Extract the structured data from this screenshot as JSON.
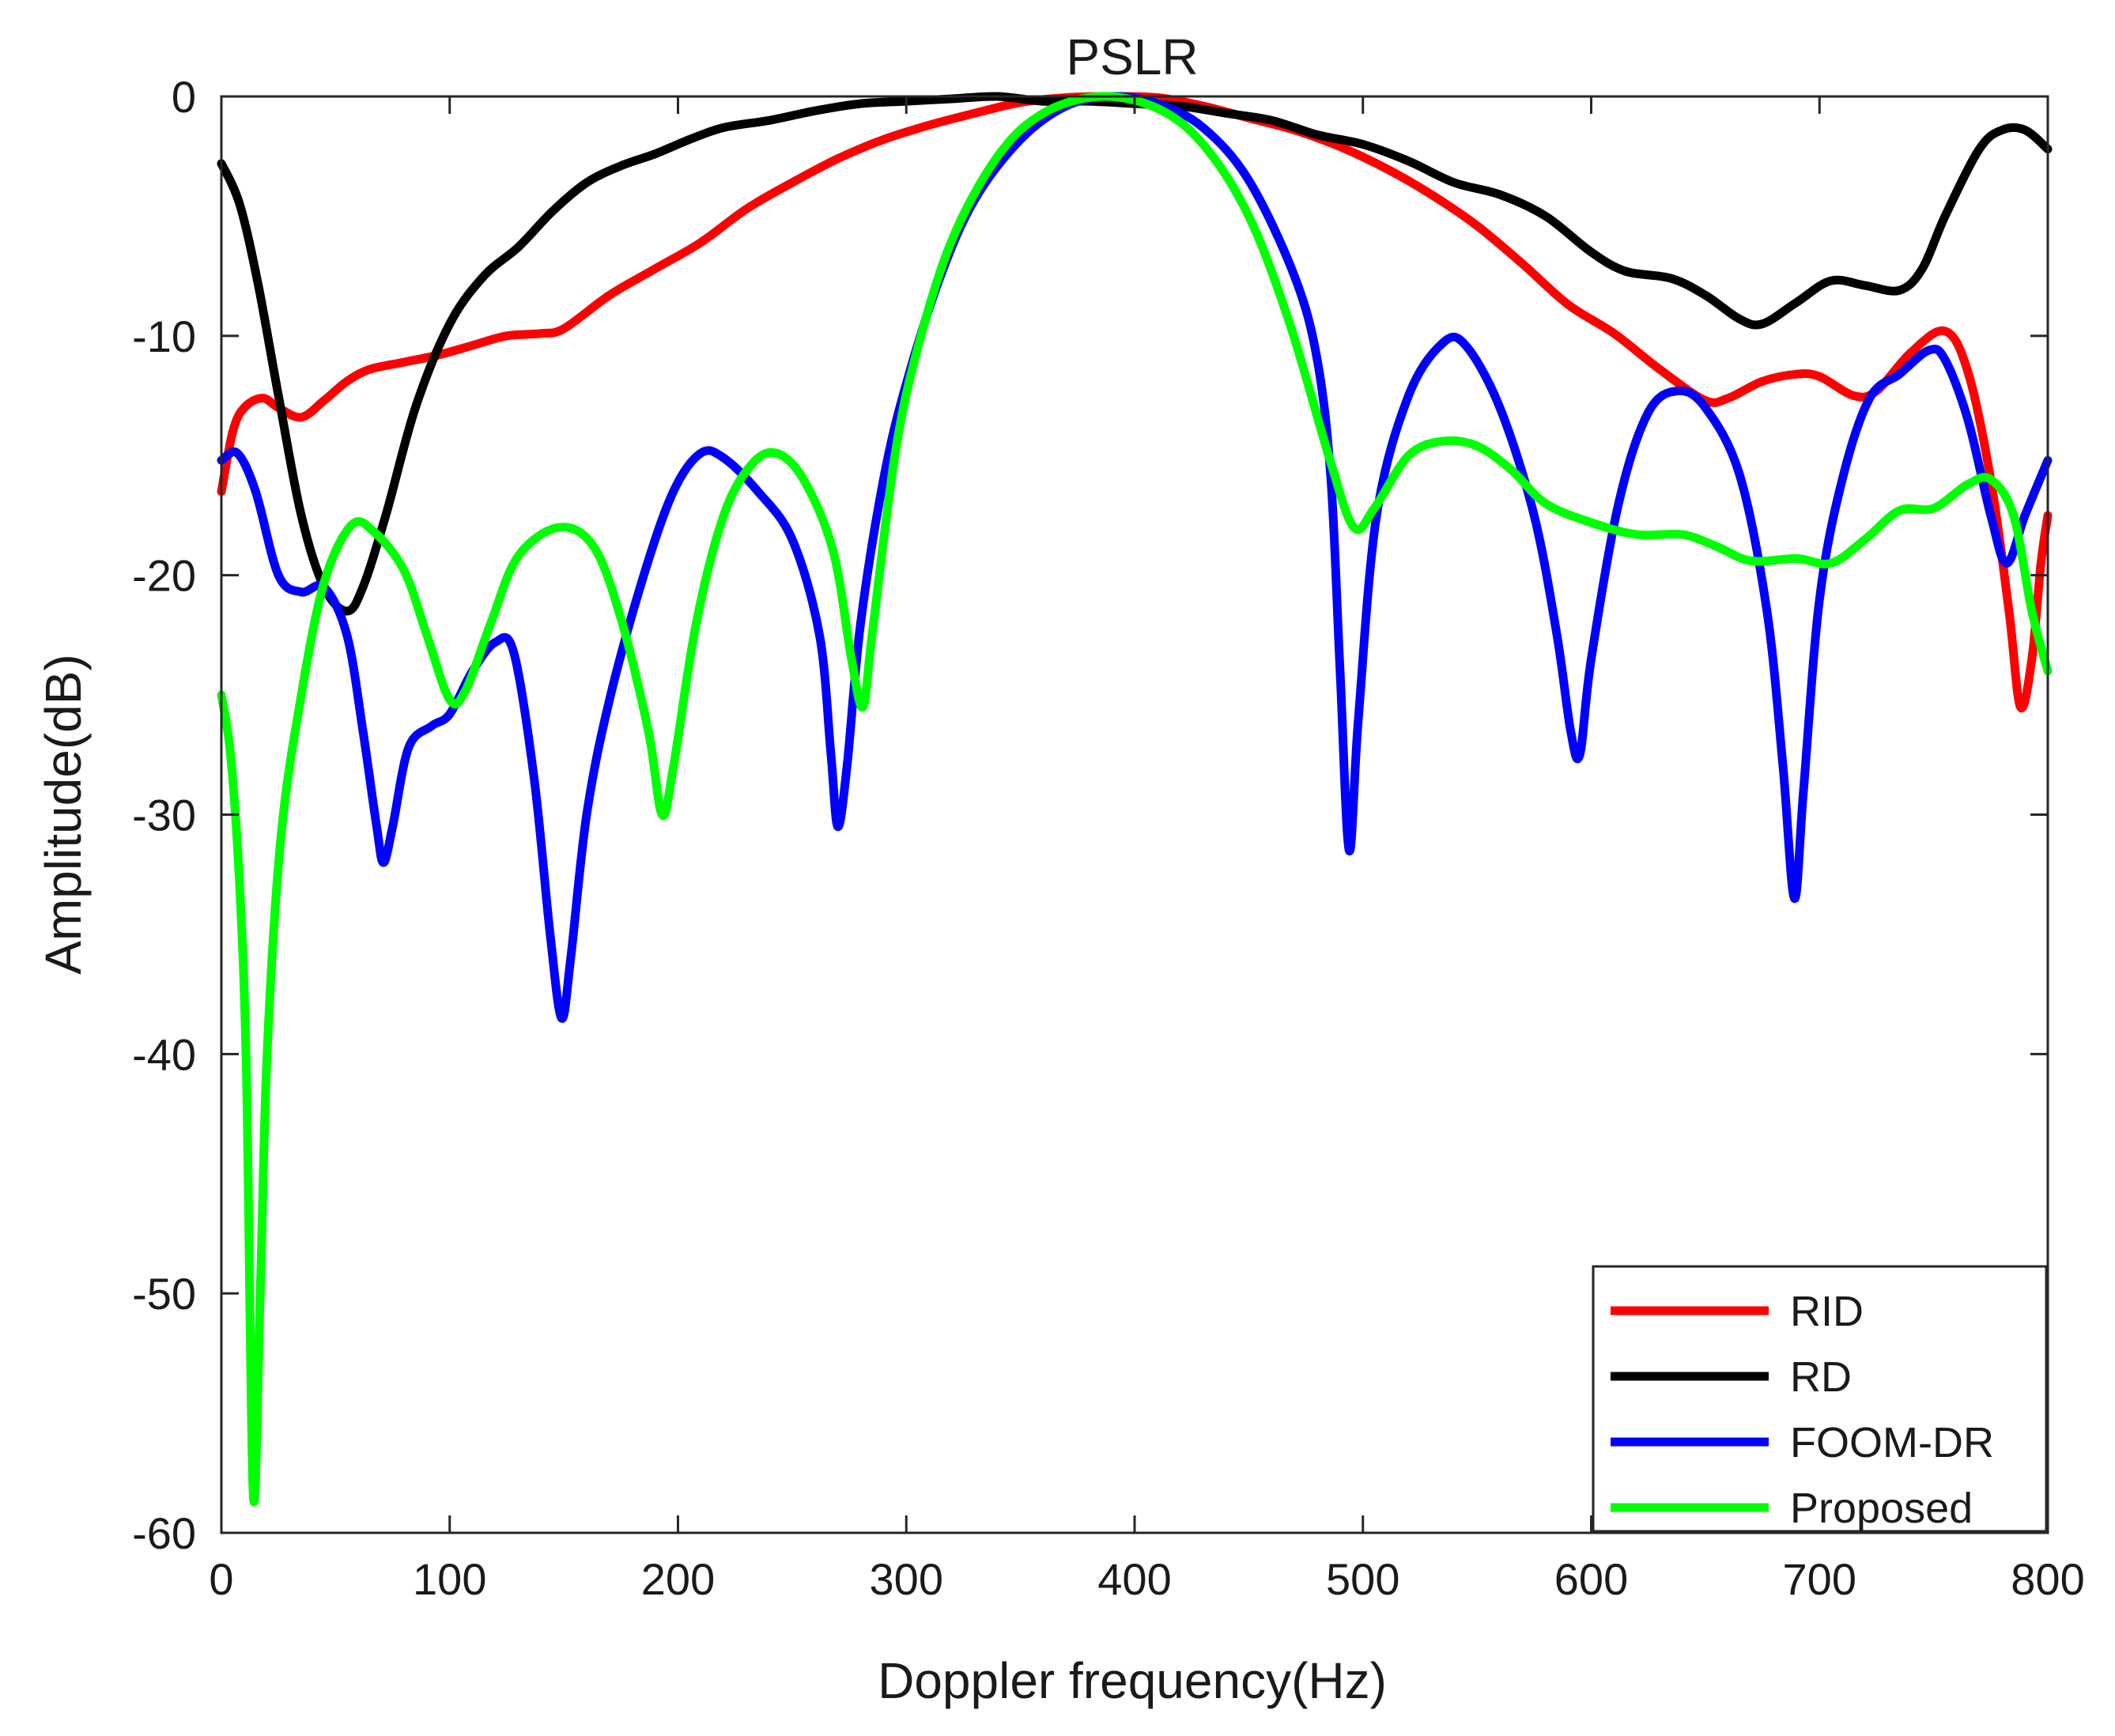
{
  "chart_data": {
    "type": "line",
    "title": "PSLR",
    "xlabel": "Doppler frequency(Hz)",
    "ylabel": "Amplitude(dB)",
    "xlim": [
      0,
      800
    ],
    "ylim": [
      -60,
      0
    ],
    "xticks": [
      0,
      100,
      200,
      300,
      400,
      500,
      600,
      700,
      800
    ],
    "yticks": [
      0,
      -10,
      -20,
      -30,
      -40,
      -50,
      -60
    ],
    "xtick_labels": [
      "0",
      "100",
      "200",
      "300",
      "400",
      "500",
      "600",
      "700",
      "800"
    ],
    "ytick_labels": [
      "0",
      "-10",
      "-20",
      "-30",
      "-40",
      "-50",
      "-60"
    ],
    "grid": false,
    "legend_position": "bottom-right",
    "series": [
      {
        "name": "RID",
        "color": "#ff0000",
        "points": [
          [
            0,
            -16.5
          ],
          [
            5,
            -14
          ],
          [
            10,
            -13
          ],
          [
            18,
            -12.6
          ],
          [
            25,
            -13
          ],
          [
            35,
            -13.4
          ],
          [
            45,
            -12.7
          ],
          [
            55,
            -11.9
          ],
          [
            65,
            -11.4
          ],
          [
            80,
            -11.1
          ],
          [
            95,
            -10.8
          ],
          [
            110,
            -10.4
          ],
          [
            125,
            -10.0
          ],
          [
            140,
            -9.9
          ],
          [
            150,
            -9.7
          ],
          [
            170,
            -8.3
          ],
          [
            190,
            -7.2
          ],
          [
            210,
            -6.1
          ],
          [
            230,
            -4.7
          ],
          [
            250,
            -3.6
          ],
          [
            270,
            -2.6
          ],
          [
            290,
            -1.8
          ],
          [
            310,
            -1.2
          ],
          [
            330,
            -0.7
          ],
          [
            350,
            -0.25
          ],
          [
            370,
            -0.05
          ],
          [
            390,
            0
          ],
          [
            410,
            -0.05
          ],
          [
            430,
            -0.4
          ],
          [
            450,
            -0.9
          ],
          [
            470,
            -1.4
          ],
          [
            490,
            -2.1
          ],
          [
            510,
            -3.0
          ],
          [
            530,
            -4.1
          ],
          [
            550,
            -5.4
          ],
          [
            570,
            -7.0
          ],
          [
            590,
            -8.7
          ],
          [
            610,
            -9.9
          ],
          [
            630,
            -11.4
          ],
          [
            650,
            -12.7
          ],
          [
            660,
            -12.6
          ],
          [
            675,
            -11.9
          ],
          [
            690,
            -11.6
          ],
          [
            700,
            -11.7
          ],
          [
            715,
            -12.5
          ],
          [
            725,
            -12.3
          ],
          [
            740,
            -10.7
          ],
          [
            755,
            -9.8
          ],
          [
            765,
            -11.5
          ],
          [
            775,
            -16.0
          ],
          [
            783,
            -21.5
          ],
          [
            788,
            -25.5
          ],
          [
            793,
            -23.5
          ],
          [
            797,
            -19.5
          ],
          [
            800,
            -17.5
          ]
        ]
      },
      {
        "name": "RD",
        "color": "#000000",
        "points": [
          [
            0,
            -2.8
          ],
          [
            8,
            -4.5
          ],
          [
            16,
            -7.8
          ],
          [
            25,
            -12.5
          ],
          [
            35,
            -17.5
          ],
          [
            45,
            -20.5
          ],
          [
            55,
            -21.5
          ],
          [
            62,
            -20.5
          ],
          [
            72,
            -17.5
          ],
          [
            85,
            -13.0
          ],
          [
            100,
            -9.5
          ],
          [
            115,
            -7.5
          ],
          [
            130,
            -6.3
          ],
          [
            145,
            -4.8
          ],
          [
            160,
            -3.6
          ],
          [
            175,
            -2.9
          ],
          [
            190,
            -2.4
          ],
          [
            205,
            -1.8
          ],
          [
            220,
            -1.3
          ],
          [
            240,
            -1.0
          ],
          [
            260,
            -0.6
          ],
          [
            280,
            -0.3
          ],
          [
            300,
            -0.2
          ],
          [
            320,
            -0.1
          ],
          [
            340,
            0
          ],
          [
            360,
            -0.2
          ],
          [
            380,
            -0.2
          ],
          [
            400,
            -0.3
          ],
          [
            420,
            -0.4
          ],
          [
            440,
            -0.7
          ],
          [
            460,
            -1.0
          ],
          [
            480,
            -1.6
          ],
          [
            500,
            -2.0
          ],
          [
            520,
            -2.7
          ],
          [
            540,
            -3.6
          ],
          [
            560,
            -4.1
          ],
          [
            580,
            -5.0
          ],
          [
            600,
            -6.5
          ],
          [
            615,
            -7.3
          ],
          [
            635,
            -7.6
          ],
          [
            650,
            -8.3
          ],
          [
            665,
            -9.3
          ],
          [
            675,
            -9.5
          ],
          [
            690,
            -8.6
          ],
          [
            705,
            -7.7
          ],
          [
            720,
            -7.9
          ],
          [
            735,
            -8.1
          ],
          [
            745,
            -7.2
          ],
          [
            755,
            -5.0
          ],
          [
            770,
            -2.2
          ],
          [
            780,
            -1.4
          ],
          [
            790,
            -1.4
          ],
          [
            800,
            -2.2
          ]
        ]
      },
      {
        "name": "FOOM-DR",
        "color": "#0000ff",
        "points": [
          [
            0,
            -15.2
          ],
          [
            7,
            -14.9
          ],
          [
            15,
            -16.5
          ],
          [
            25,
            -20.0
          ],
          [
            35,
            -20.7
          ],
          [
            45,
            -20.5
          ],
          [
            55,
            -22.5
          ],
          [
            62,
            -26.5
          ],
          [
            68,
            -30.5
          ],
          [
            71,
            -32
          ],
          [
            75,
            -30.5
          ],
          [
            82,
            -27.2
          ],
          [
            92,
            -26.3
          ],
          [
            100,
            -25.8
          ],
          [
            110,
            -24.0
          ],
          [
            120,
            -22.8
          ],
          [
            128,
            -23.2
          ],
          [
            137,
            -28.5
          ],
          [
            144,
            -35.0
          ],
          [
            149,
            -38.5
          ],
          [
            153,
            -36.0
          ],
          [
            160,
            -30.0
          ],
          [
            170,
            -25.2
          ],
          [
            185,
            -20.0
          ],
          [
            198,
            -16.5
          ],
          [
            210,
            -14.9
          ],
          [
            220,
            -15.1
          ],
          [
            235,
            -16.5
          ],
          [
            250,
            -18.5
          ],
          [
            262,
            -22.5
          ],
          [
            267,
            -27.5
          ],
          [
            270,
            -30.5
          ],
          [
            274,
            -28.0
          ],
          [
            280,
            -22.0
          ],
          [
            290,
            -16.0
          ],
          [
            300,
            -12.0
          ],
          [
            315,
            -7.5
          ],
          [
            330,
            -4.3
          ],
          [
            350,
            -1.8
          ],
          [
            370,
            -0.4
          ],
          [
            390,
            0
          ],
          [
            410,
            -0.3
          ],
          [
            430,
            -1.3
          ],
          [
            450,
            -3.5
          ],
          [
            470,
            -7.5
          ],
          [
            480,
            -11.0
          ],
          [
            486,
            -16.0
          ],
          [
            490,
            -24.0
          ],
          [
            494,
            -31.5
          ],
          [
            498,
            -26.0
          ],
          [
            506,
            -17.5
          ],
          [
            520,
            -12.5
          ],
          [
            535,
            -10.3
          ],
          [
            545,
            -10.4
          ],
          [
            560,
            -13.0
          ],
          [
            575,
            -17.5
          ],
          [
            585,
            -22.5
          ],
          [
            591,
            -26.5
          ],
          [
            595,
            -27.5
          ],
          [
            600,
            -23.5
          ],
          [
            612,
            -17.0
          ],
          [
            625,
            -13.2
          ],
          [
            638,
            -12.3
          ],
          [
            650,
            -13.0
          ],
          [
            665,
            -15.8
          ],
          [
            677,
            -21.5
          ],
          [
            684,
            -28.0
          ],
          [
            689,
            -33.5
          ],
          [
            693,
            -29.0
          ],
          [
            700,
            -21.0
          ],
          [
            710,
            -16.0
          ],
          [
            722,
            -12.6
          ],
          [
            735,
            -11.6
          ],
          [
            748,
            -10.6
          ],
          [
            755,
            -11.0
          ],
          [
            765,
            -13.5
          ],
          [
            775,
            -17.5
          ],
          [
            782,
            -19.5
          ],
          [
            790,
            -17.5
          ],
          [
            800,
            -15.2
          ]
        ]
      },
      {
        "name": "Proposed",
        "color": "#00ff00",
        "points": [
          [
            0,
            -25.0
          ],
          [
            4,
            -27.5
          ],
          [
            8,
            -33.0
          ],
          [
            11,
            -41.0
          ],
          [
            14,
            -58.5
          ],
          [
            17,
            -50.0
          ],
          [
            20,
            -40.0
          ],
          [
            26,
            -31.0
          ],
          [
            35,
            -25.0
          ],
          [
            45,
            -20.3
          ],
          [
            57,
            -17.9
          ],
          [
            67,
            -18.2
          ],
          [
            80,
            -19.8
          ],
          [
            90,
            -22.5
          ],
          [
            100,
            -25.2
          ],
          [
            107,
            -24.8
          ],
          [
            118,
            -22.0
          ],
          [
            130,
            -19.2
          ],
          [
            148,
            -18.0
          ],
          [
            163,
            -18.8
          ],
          [
            175,
            -21.8
          ],
          [
            187,
            -26.5
          ],
          [
            193,
            -30.0
          ],
          [
            198,
            -28.0
          ],
          [
            208,
            -22.0
          ],
          [
            220,
            -17.5
          ],
          [
            232,
            -15.4
          ],
          [
            243,
            -14.9
          ],
          [
            255,
            -16.0
          ],
          [
            268,
            -19.0
          ],
          [
            276,
            -23.5
          ],
          [
            281,
            -25.5
          ],
          [
            285,
            -22.5
          ],
          [
            295,
            -15.0
          ],
          [
            305,
            -10.5
          ],
          [
            320,
            -6.0
          ],
          [
            340,
            -2.5
          ],
          [
            360,
            -0.7
          ],
          [
            385,
            0
          ],
          [
            410,
            -0.5
          ],
          [
            430,
            -2.0
          ],
          [
            450,
            -5.0
          ],
          [
            468,
            -9.5
          ],
          [
            485,
            -15.0
          ],
          [
            496,
            -18.0
          ],
          [
            505,
            -17.2
          ],
          [
            520,
            -15.0
          ],
          [
            535,
            -14.4
          ],
          [
            550,
            -14.6
          ],
          [
            565,
            -15.6
          ],
          [
            580,
            -17.0
          ],
          [
            600,
            -17.8
          ],
          [
            620,
            -18.3
          ],
          [
            640,
            -18.3
          ],
          [
            655,
            -18.8
          ],
          [
            670,
            -19.4
          ],
          [
            690,
            -19.3
          ],
          [
            705,
            -19.5
          ],
          [
            720,
            -18.5
          ],
          [
            735,
            -17.3
          ],
          [
            750,
            -17.2
          ],
          [
            765,
            -16.2
          ],
          [
            775,
            -16.0
          ],
          [
            785,
            -17.5
          ],
          [
            793,
            -21.5
          ],
          [
            800,
            -24.0
          ]
        ]
      }
    ]
  }
}
